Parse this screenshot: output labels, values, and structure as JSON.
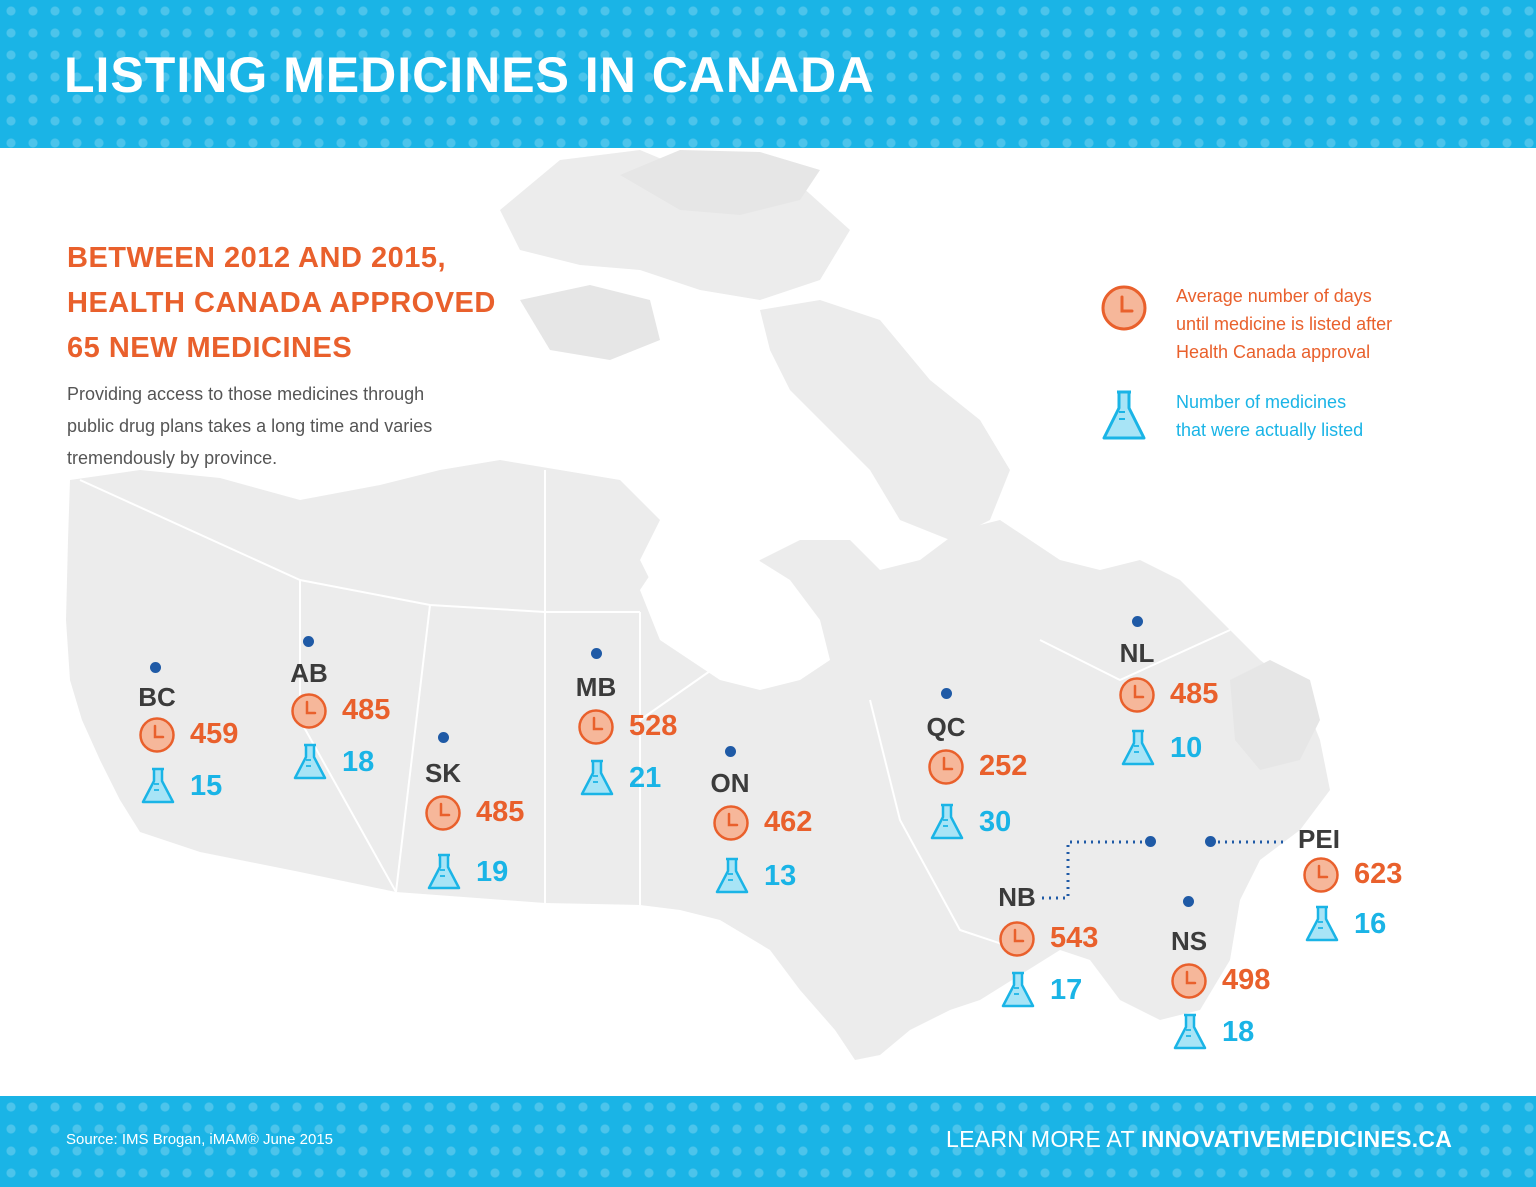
{
  "header": {
    "title": "LISTING MEDICINES IN CANADA"
  },
  "headline": {
    "lines": [
      "BETWEEN 2012 AND 2015,",
      "HEALTH CANADA APPROVED",
      "65 NEW MEDICINES"
    ]
  },
  "intro": {
    "lines": [
      "Providing access to those medicines through",
      "public drug plans takes a long time and varies",
      "tremendously by province."
    ]
  },
  "legend": {
    "days_lines": [
      "Average number of days",
      "until medicine is listed after",
      "Health Canada approval"
    ],
    "count_lines": [
      "Number of medicines",
      "that were actually listed"
    ],
    "days_icon": "clock-icon",
    "count_icon": "flask-icon"
  },
  "colors": {
    "header_band": "#1ab4e6",
    "days": "#e9602c",
    "count": "#1ab4e6",
    "marker": "#1f5aa6",
    "land": "#ececec",
    "border": "#ffffff"
  },
  "provinces": [
    {
      "code": "BC",
      "days": "459",
      "medicines": "15"
    },
    {
      "code": "AB",
      "days": "485",
      "medicines": "18"
    },
    {
      "code": "SK",
      "days": "485",
      "medicines": "19"
    },
    {
      "code": "MB",
      "days": "528",
      "medicines": "21"
    },
    {
      "code": "ON",
      "days": "462",
      "medicines": "13"
    },
    {
      "code": "QC",
      "days": "252",
      "medicines": "30"
    },
    {
      "code": "NL",
      "days": "485",
      "medicines": "10"
    },
    {
      "code": "NB",
      "days": "543",
      "medicines": "17"
    },
    {
      "code": "NS",
      "days": "498",
      "medicines": "18"
    },
    {
      "code": "PEI",
      "days": "623",
      "medicines": "16"
    }
  ],
  "footer": {
    "source": "Source: IMS Brogan, iMAM® June 2015",
    "learn_prefix": "LEARN MORE AT ",
    "learn_site": "INNOVATIVEMEDICINES.CA"
  }
}
